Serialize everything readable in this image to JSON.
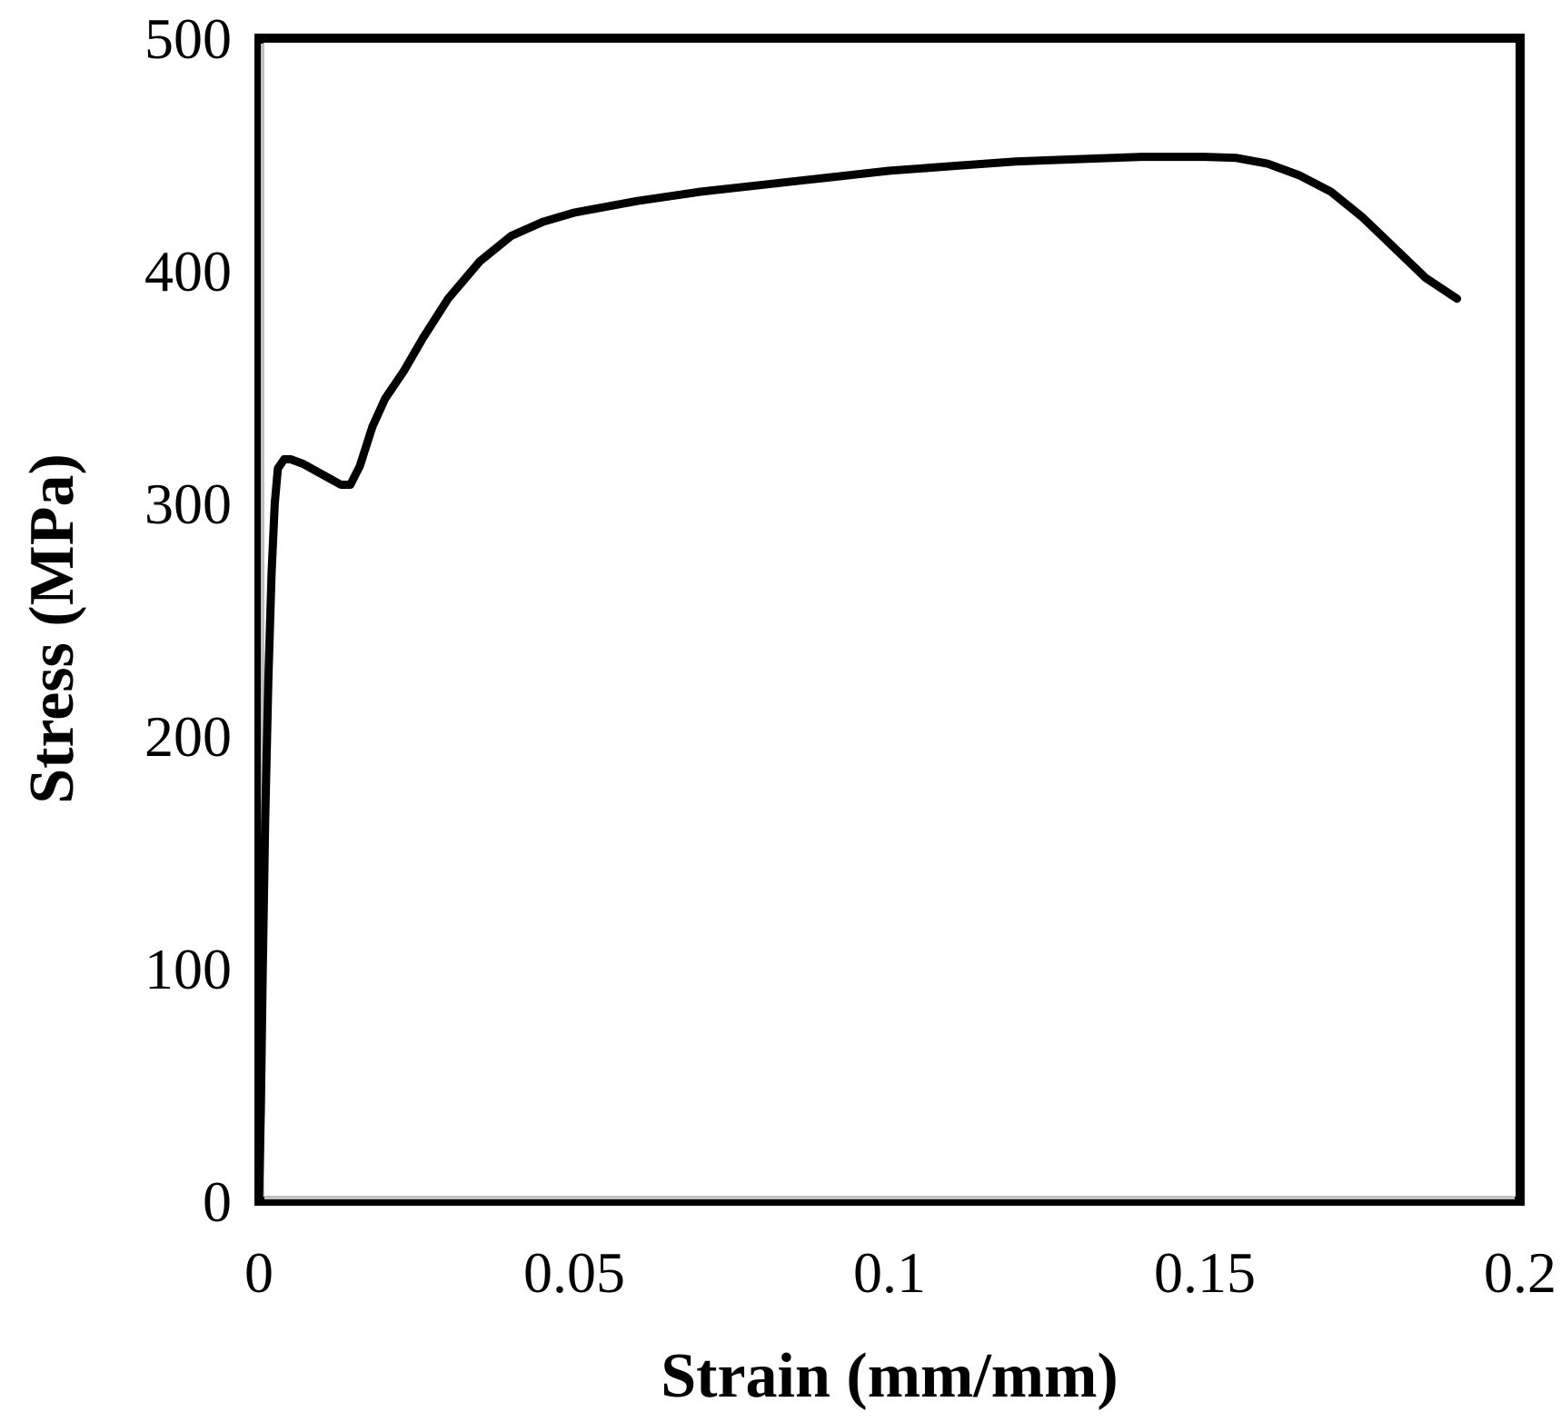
{
  "chart_data": {
    "type": "line",
    "title": "",
    "xlabel": "Strain (mm/mm)",
    "ylabel": "Stress (MPa)",
    "xlim": [
      0,
      0.2
    ],
    "ylim": [
      0,
      500
    ],
    "x_ticks": [
      "0",
      "0.05",
      "0.1",
      "0.15",
      "0.2"
    ],
    "y_ticks": [
      "0",
      "100",
      "200",
      "300",
      "400",
      "500"
    ],
    "grid": false,
    "legend": "none",
    "colors": {
      "line": "#000000",
      "frame": "#000000",
      "axis_highlight": "#bfbfbf"
    },
    "series": [
      {
        "x": [
          0.0,
          0.0003,
          0.0006,
          0.001,
          0.0015,
          0.002,
          0.0025,
          0.003,
          0.004,
          0.005,
          0.007,
          0.009,
          0.011,
          0.013,
          0.0145,
          0.016,
          0.018,
          0.02,
          0.023,
          0.026,
          0.03,
          0.035,
          0.04,
          0.045,
          0.05,
          0.06,
          0.07,
          0.08,
          0.09,
          0.1,
          0.11,
          0.12,
          0.13,
          0.14,
          0.15,
          0.155,
          0.16,
          0.165,
          0.17,
          0.175,
          0.18,
          0.185,
          0.19
        ],
        "y": [
          0,
          40,
          100,
          165,
          225,
          270,
          300,
          315,
          319,
          319,
          317,
          314,
          311,
          308,
          308,
          316,
          333,
          345,
          357,
          371,
          388,
          404,
          415,
          421,
          425,
          430,
          434,
          437,
          440,
          443,
          445,
          447,
          448,
          449,
          449,
          448.5,
          446,
          441,
          434,
          423,
          410,
          397,
          388
        ]
      }
    ]
  }
}
